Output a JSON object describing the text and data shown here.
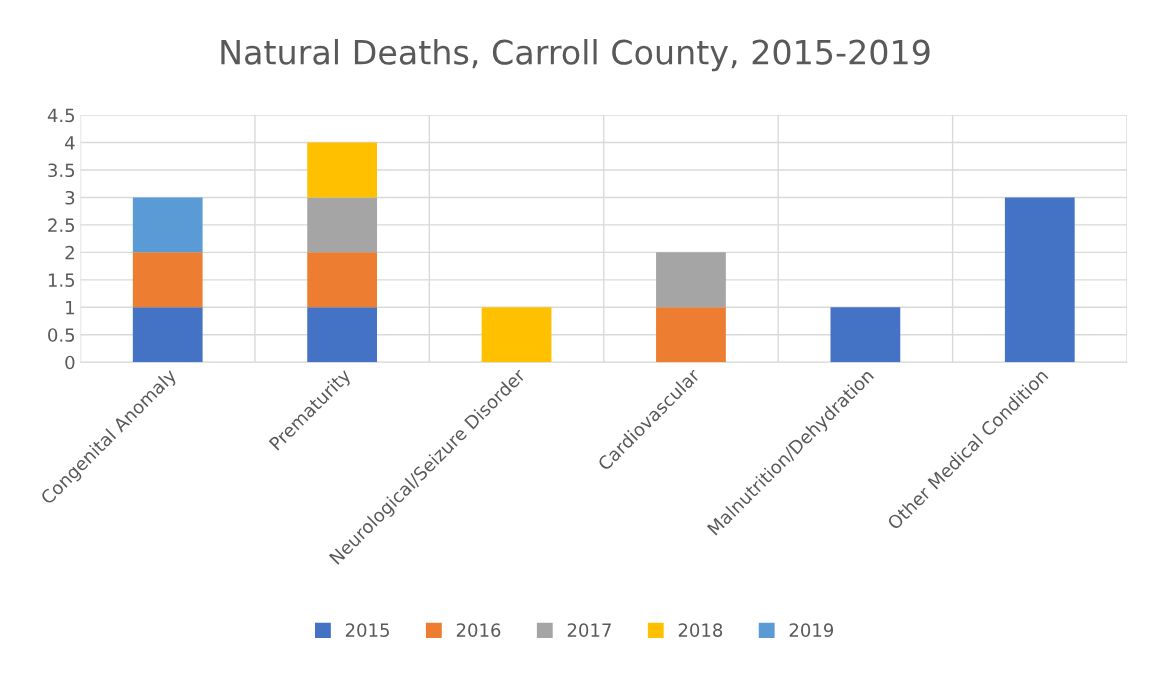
{
  "chart_data": {
    "type": "bar",
    "title": "Natural Deaths, Carroll County, 2015-2019",
    "categories": [
      "Congenital Anomaly",
      "Prematurity",
      "Neurological/Seizure Disorder",
      "Cardiovascular",
      "Malnutrition/Dehydration",
      "Other Medical Condition"
    ],
    "series": [
      {
        "name": "2015",
        "color": "#4472c4",
        "values": [
          1,
          1,
          null,
          null,
          1,
          3
        ]
      },
      {
        "name": "2016",
        "color": "#ed7d31",
        "values": [
          1,
          1,
          null,
          1,
          null,
          null
        ]
      },
      {
        "name": "2017",
        "color": "#a5a5a5",
        "values": [
          null,
          1,
          null,
          1,
          null,
          null
        ]
      },
      {
        "name": "2018",
        "color": "#ffc000",
        "values": [
          null,
          1,
          1,
          null,
          null,
          null
        ]
      },
      {
        "name": "2019",
        "color": "#5b9bd5",
        "values": [
          1,
          null,
          null,
          null,
          null,
          null
        ]
      }
    ],
    "stacked": true,
    "ylim": [
      0,
      4.5
    ],
    "yticks": [
      0,
      0.5,
      1,
      1.5,
      2,
      2.5,
      3,
      3.5,
      4,
      4.5
    ],
    "grid": true,
    "legend": "bottom"
  }
}
